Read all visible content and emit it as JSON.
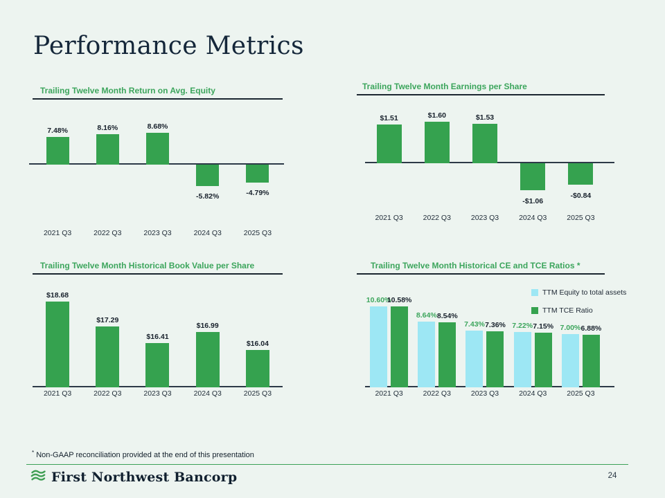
{
  "slide": {
    "title": "Performance Metrics",
    "footnote_marker": "*",
    "footnote": "Non-GAAP reconciliation provided at the end of this presentation",
    "page_number": "24",
    "logo_text": "First Northwest Bancorp"
  },
  "colors": {
    "background": "#edf4f0",
    "bar_green": "#35a24f",
    "bar_light_blue": "#9de7f4",
    "chart_title_green": "#3ca55c",
    "heading_navy": "#15273a",
    "axis_dark": "#2c3947",
    "value_label_dark": "#18212c",
    "blue_series_label_green": "#3ca55c",
    "footer_line_green": "#3ba156"
  },
  "chart_data": [
    {
      "type": "bar",
      "title": "Trailing Twelve Month Return on Avg. Equity",
      "categories": [
        "2021 Q3",
        "2022 Q3",
        "2023 Q3",
        "2024 Q3",
        "2025 Q3"
      ],
      "values": [
        7.48,
        8.16,
        8.68,
        -5.82,
        -4.79
      ],
      "labels": [
        "7.48%",
        "8.16%",
        "8.68%",
        "-5.82%",
        "-4.79%"
      ],
      "xlabel": "",
      "ylabel": "",
      "ylim": [
        -8,
        10
      ],
      "grid": false,
      "legend": false,
      "axis_baseline": 0
    },
    {
      "type": "bar",
      "title": "Trailing Twelve Month Earnings per Share",
      "categories": [
        "2021 Q3",
        "2022 Q3",
        "2023 Q3",
        "2024 Q3",
        "2025 Q3"
      ],
      "values": [
        1.51,
        1.6,
        1.53,
        -1.06,
        -0.84
      ],
      "labels": [
        "$1.51",
        "$1.60",
        "$1.53",
        "-$1.06",
        "-$0.84"
      ],
      "xlabel": "",
      "ylabel": "",
      "ylim": [
        -1.4,
        2.0
      ],
      "grid": false,
      "legend": false,
      "axis_baseline": 0
    },
    {
      "type": "bar",
      "title": "Trailing Twelve Month Historical Book Value per Share",
      "categories": [
        "2021 Q3",
        "2022 Q3",
        "2023 Q3",
        "2024 Q3",
        "2025 Q3"
      ],
      "values": [
        18.68,
        17.29,
        16.41,
        16.99,
        16.04
      ],
      "labels": [
        "$18.68",
        "$17.29",
        "$16.41",
        "$16.99",
        "$16.04"
      ],
      "xlabel": "",
      "ylabel": "",
      "ylim": [
        14,
        19.5
      ],
      "grid": false,
      "legend": false,
      "axis_baseline": 14
    },
    {
      "type": "bar",
      "title": "Trailing Twelve Month Historical CE and TCE Ratios *",
      "categories": [
        "2021 Q3",
        "2022 Q3",
        "2023 Q3",
        "2024 Q3",
        "2025 Q3"
      ],
      "series": [
        {
          "name": "TTM Equity to total assets",
          "values": [
            10.6,
            8.64,
            7.43,
            7.22,
            7.0
          ],
          "labels": [
            "10.60%",
            "8.64%",
            "7.43%",
            "7.22%",
            "7.00%"
          ],
          "color": "#9de7f4",
          "label_color": "#3ca55c"
        },
        {
          "name": "TTM TCE Ratio",
          "values": [
            10.58,
            8.54,
            7.36,
            7.15,
            6.88
          ],
          "labels": [
            "10.58%",
            "8.54%",
            "7.36%",
            "7.15%",
            "6.88%"
          ],
          "color": "#35a24f",
          "label_color": "#18212c"
        }
      ],
      "xlabel": "",
      "ylabel": "",
      "ylim": [
        0,
        12
      ],
      "grid": false,
      "legend_position": "top-right",
      "axis_baseline": 0
    }
  ]
}
